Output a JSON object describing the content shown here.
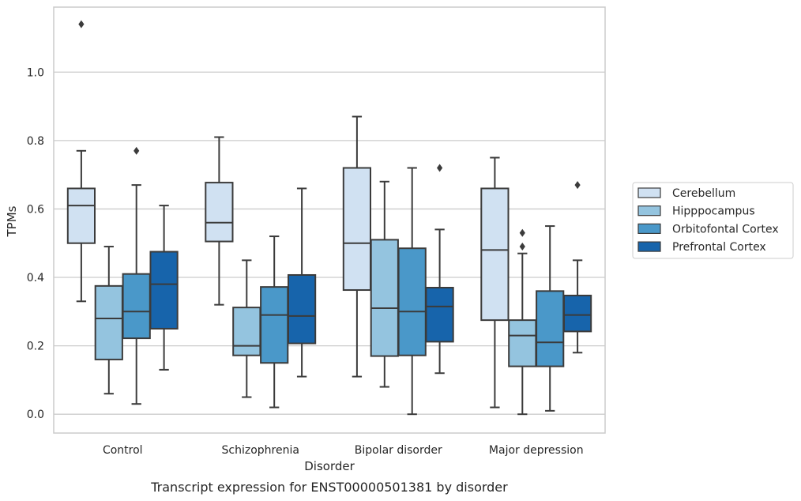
{
  "chart_data": {
    "type": "box",
    "xlabel": "Disorder",
    "ylabel": "TPMs",
    "caption": "Transcript expression for ENST00000501381 by disorder",
    "ylim": [
      -0.055,
      1.19
    ],
    "yticks": [
      "0.0",
      "0.2",
      "0.4",
      "0.6",
      "0.8",
      "1.0"
    ],
    "grid": "horizontal",
    "legend_position": "right",
    "categories": [
      "Control",
      "Schizophrenia",
      "Bipolar disorder",
      "Major depression"
    ],
    "series": [
      {
        "name": "Cerebellum",
        "color": "#d0e1f2",
        "boxes": [
          {
            "whisker_low": 0.33,
            "q1": 0.5,
            "median": 0.61,
            "q3": 0.66,
            "whisker_high": 0.77,
            "outliers": [
              1.14
            ]
          },
          {
            "whisker_low": 0.32,
            "q1": 0.505,
            "median": 0.56,
            "q3": 0.677,
            "whisker_high": 0.81,
            "outliers": []
          },
          {
            "whisker_low": 0.11,
            "q1": 0.363,
            "median": 0.5,
            "q3": 0.72,
            "whisker_high": 0.87,
            "outliers": []
          },
          {
            "whisker_low": 0.02,
            "q1": 0.275,
            "median": 0.48,
            "q3": 0.66,
            "whisker_high": 0.75,
            "outliers": []
          }
        ]
      },
      {
        "name": "Hipppocampus",
        "color": "#94c4df",
        "boxes": [
          {
            "whisker_low": 0.06,
            "q1": 0.16,
            "median": 0.28,
            "q3": 0.375,
            "whisker_high": 0.49,
            "outliers": []
          },
          {
            "whisker_low": 0.05,
            "q1": 0.172,
            "median": 0.2,
            "q3": 0.312,
            "whisker_high": 0.45,
            "outliers": []
          },
          {
            "whisker_low": 0.08,
            "q1": 0.17,
            "median": 0.31,
            "q3": 0.51,
            "whisker_high": 0.68,
            "outliers": []
          },
          {
            "whisker_low": 0.0,
            "q1": 0.14,
            "median": 0.23,
            "q3": 0.275,
            "whisker_high": 0.47,
            "outliers": [
              0.49,
              0.53
            ]
          }
        ]
      },
      {
        "name": "Orbitofontal Cortex",
        "color": "#4a98c9",
        "boxes": [
          {
            "whisker_low": 0.03,
            "q1": 0.222,
            "median": 0.3,
            "q3": 0.41,
            "whisker_high": 0.67,
            "outliers": [
              0.77
            ]
          },
          {
            "whisker_low": 0.02,
            "q1": 0.15,
            "median": 0.29,
            "q3": 0.372,
            "whisker_high": 0.52,
            "outliers": []
          },
          {
            "whisker_low": 0.0,
            "q1": 0.172,
            "median": 0.3,
            "q3": 0.485,
            "whisker_high": 0.72,
            "outliers": []
          },
          {
            "whisker_low": 0.01,
            "q1": 0.14,
            "median": 0.21,
            "q3": 0.36,
            "whisker_high": 0.55,
            "outliers": []
          }
        ]
      },
      {
        "name": "Prefrontal Cortex",
        "color": "#1764ab",
        "boxes": [
          {
            "whisker_low": 0.13,
            "q1": 0.25,
            "median": 0.38,
            "q3": 0.475,
            "whisker_high": 0.61,
            "outliers": []
          },
          {
            "whisker_low": 0.11,
            "q1": 0.207,
            "median": 0.287,
            "q3": 0.407,
            "whisker_high": 0.66,
            "outliers": []
          },
          {
            "whisker_low": 0.12,
            "q1": 0.212,
            "median": 0.315,
            "q3": 0.37,
            "whisker_high": 0.54,
            "outliers": [
              0.72
            ]
          },
          {
            "whisker_low": 0.18,
            "q1": 0.242,
            "median": 0.29,
            "q3": 0.347,
            "whisker_high": 0.45,
            "outliers": [
              0.67
            ]
          }
        ]
      }
    ]
  }
}
